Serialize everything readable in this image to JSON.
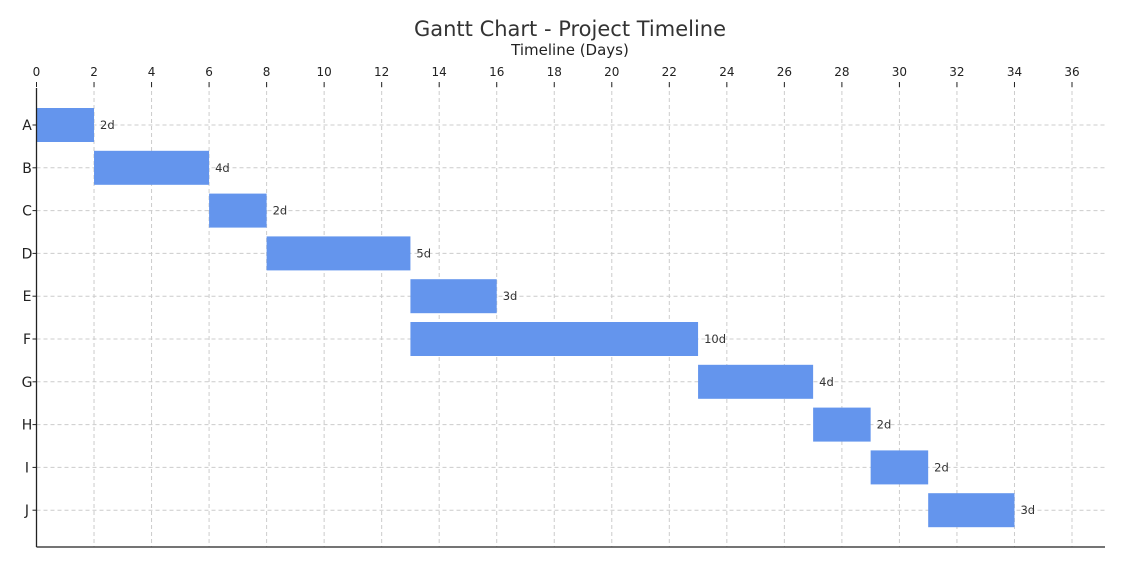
{
  "chart_data": {
    "type": "bar",
    "orientation": "horizontal",
    "title": "Gantt Chart - Project Timeline",
    "xlabel": "Timeline (Days)",
    "ylabel": "",
    "xlim": [
      0,
      36
    ],
    "xticks": [
      0,
      2,
      4,
      6,
      8,
      10,
      12,
      14,
      16,
      18,
      20,
      22,
      24,
      26,
      28,
      30,
      32,
      34,
      36
    ],
    "x_axis_position": "top",
    "grid": true,
    "bar_color": "#6495ED",
    "tasks": [
      {
        "name": "A",
        "start": 0,
        "duration": 2,
        "label": "2d"
      },
      {
        "name": "B",
        "start": 2,
        "duration": 4,
        "label": "4d"
      },
      {
        "name": "C",
        "start": 6,
        "duration": 2,
        "label": "2d"
      },
      {
        "name": "D",
        "start": 8,
        "duration": 5,
        "label": "5d"
      },
      {
        "name": "E",
        "start": 13,
        "duration": 3,
        "label": "3d"
      },
      {
        "name": "F",
        "start": 13,
        "duration": 10,
        "label": "10d"
      },
      {
        "name": "G",
        "start": 23,
        "duration": 4,
        "label": "4d"
      },
      {
        "name": "H",
        "start": 27,
        "duration": 2,
        "label": "2d"
      },
      {
        "name": "I",
        "start": 29,
        "duration": 2,
        "label": "2d"
      },
      {
        "name": "J",
        "start": 31,
        "duration": 3,
        "label": "3d"
      }
    ]
  }
}
